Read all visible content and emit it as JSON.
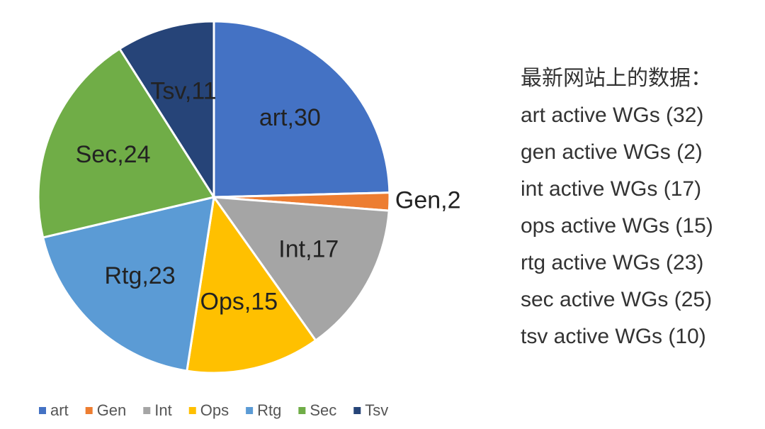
{
  "chart_data": {
    "type": "pie",
    "categories": [
      "art",
      "Gen",
      "Int",
      "Ops",
      "Rtg",
      "Sec",
      "Tsv"
    ],
    "values": [
      30,
      2,
      17,
      15,
      23,
      24,
      11
    ],
    "value_labels": [
      "art,30",
      "Gen,2",
      "Int,17",
      "Ops,15",
      "Rtg,23",
      "Sec,24",
      "Tsv,11"
    ],
    "colors": [
      "#4472c4",
      "#ed7d31",
      "#a5a5a5",
      "#ffc000",
      "#5b9bd5",
      "#70ad47",
      "#264478"
    ],
    "legend": "bottom",
    "annotation_title": "最新网站上的数据：",
    "annotations": [
      "art active WGs (32)",
      "gen active WGs (2)",
      "int active WGs (17)",
      "ops active WGs (15)",
      "rtg active WGs (23)",
      "sec active WGs (25)",
      "tsv active WGs (10)"
    ]
  }
}
